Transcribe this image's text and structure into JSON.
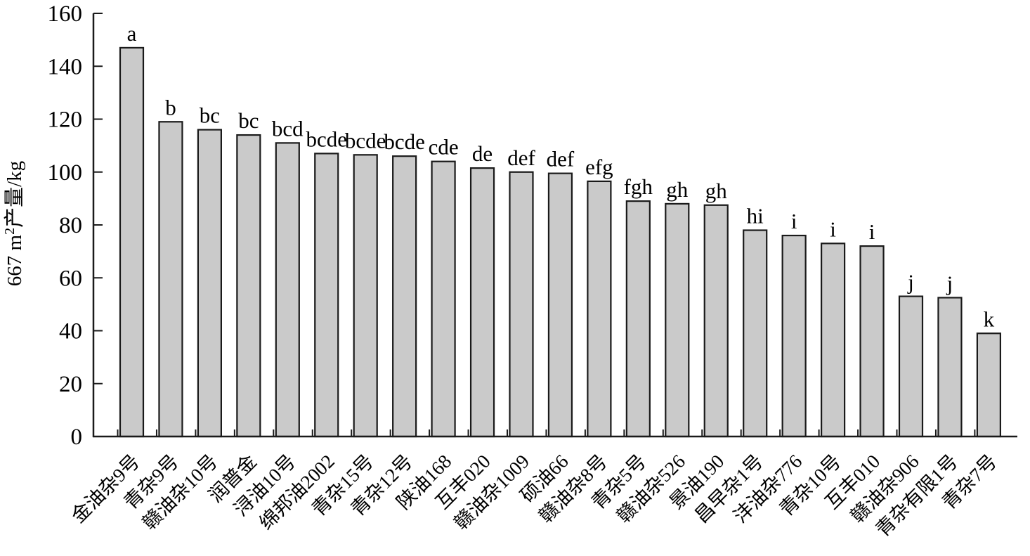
{
  "chart_data": {
    "type": "bar",
    "title": "",
    "xlabel": "",
    "ylabel": "667 m²产量/kg",
    "ylabel_parts": {
      "pre": "667 m",
      "sup": "2",
      "post": "产量/kg"
    },
    "ylim": [
      0,
      160
    ],
    "yticks": [
      0,
      20,
      40,
      60,
      80,
      100,
      120,
      140,
      160
    ],
    "grid": false,
    "legend": "none",
    "categories": [
      "金油杂9号",
      "青杂9号",
      "赣油杂10号",
      "润普金",
      "浔油10号",
      "绵邦油2002",
      "青杂15号",
      "青杂12号",
      "陕油168",
      "互丰020",
      "赣油杂1009",
      "硕油66",
      "赣油杂8号",
      "青杂5号",
      "赣油杂526",
      "景油190",
      "昌早杂1号",
      "沣油杂776",
      "青杂10号",
      "互丰010",
      "赣油杂906",
      "青杂有限1号",
      "青杂7号"
    ],
    "values": [
      147,
      119,
      116,
      114,
      111,
      107,
      106.5,
      106,
      104,
      101.5,
      100,
      99.5,
      96.5,
      89,
      88,
      87.5,
      78,
      76,
      73,
      72,
      53,
      52.5,
      39
    ],
    "sig_letters": [
      "a",
      "b",
      "bc",
      "bc",
      "bcd",
      "bcde",
      "bcde",
      "bcde",
      "cde",
      "de",
      "def",
      "def",
      "efg",
      "fgh",
      "gh",
      "gh",
      "hi",
      "i",
      "i",
      "i",
      "j",
      "j",
      "k"
    ],
    "colors": {
      "bar_fill": "#cacaca",
      "bar_stroke": "#1a1a1a",
      "axis": "#1a1a1a",
      "text": "#000000"
    }
  }
}
